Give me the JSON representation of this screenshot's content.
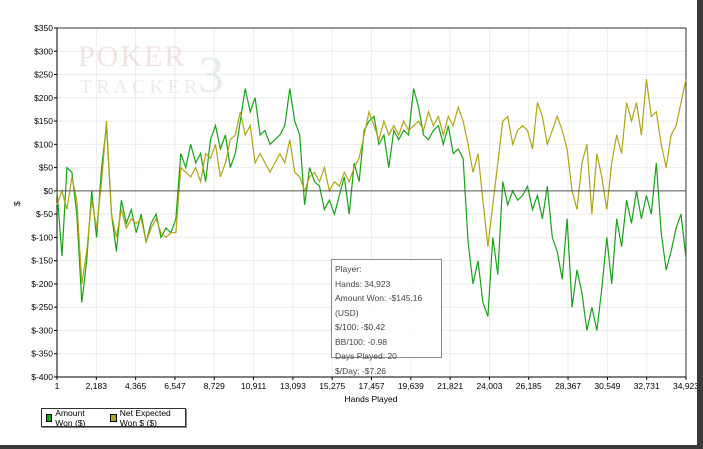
{
  "chart_data": {
    "type": "line",
    "xlabel": "Hands Played",
    "ylabel": "$",
    "xlim": [
      1,
      34923
    ],
    "ylim": [
      -400,
      350
    ],
    "grid": true,
    "x_ticks": [
      "1",
      "2,183",
      "4,365",
      "6,547",
      "8,729",
      "10,911",
      "13,093",
      "15,275",
      "17,457",
      "19,639",
      "21,821",
      "24,003",
      "26,185",
      "28,367",
      "30,549",
      "32,731",
      "34,923"
    ],
    "y_ticks": [
      350,
      300,
      250,
      200,
      150,
      100,
      50,
      0,
      -50,
      -100,
      -150,
      -200,
      -250,
      -300,
      -350,
      -400
    ],
    "y_tick_labels": [
      "$350",
      "$300",
      "$250",
      "$200",
      "$150",
      "$100",
      "$50",
      "$0",
      "$-50",
      "$-100",
      "$-150",
      "$-200",
      "$-250",
      "$-300",
      "$-350",
      "$-400"
    ],
    "legend_position": "bottom-left",
    "series": [
      {
        "name": "Amount Won ($)",
        "color": "#16a316",
        "values": [
          0,
          -140,
          50,
          40,
          -50,
          -240,
          -150,
          0,
          -100,
          50,
          140,
          -50,
          -130,
          -20,
          -70,
          -40,
          -90,
          -50,
          -110,
          -70,
          -50,
          -100,
          -80,
          -90,
          -60,
          80,
          50,
          100,
          60,
          80,
          20,
          110,
          140,
          90,
          120,
          50,
          80,
          150,
          220,
          170,
          200,
          120,
          130,
          100,
          110,
          120,
          140,
          220,
          150,
          120,
          -30,
          50,
          20,
          10,
          -40,
          -20,
          -50,
          -10,
          30,
          -50,
          60,
          20,
          130,
          150,
          160,
          100,
          120,
          50,
          130,
          110,
          130,
          120,
          220,
          180,
          120,
          110,
          130,
          140,
          100,
          140,
          80,
          90,
          70,
          -110,
          -200,
          -150,
          -240,
          -270,
          -100,
          -180,
          20,
          -30,
          0,
          -20,
          -10,
          10,
          -40,
          -10,
          -60,
          10,
          -100,
          -130,
          -190,
          -60,
          -250,
          -170,
          -220,
          -300,
          -250,
          -300,
          -210,
          -100,
          -200,
          -60,
          -120,
          -20,
          -70,
          0,
          -60,
          -10,
          -50,
          60,
          -90,
          -170,
          -130,
          -80,
          -50,
          -145
        ]
      },
      {
        "name": "Net Expected Won $ ($)",
        "color": "#b0a512",
        "values": [
          -30,
          0,
          -40,
          30,
          -20,
          -200,
          -130,
          -20,
          -80,
          20,
          150,
          -50,
          -100,
          -40,
          -80,
          -60,
          -70,
          -60,
          -110,
          -80,
          -60,
          -90,
          -100,
          -90,
          -90,
          50,
          40,
          30,
          50,
          20,
          80,
          70,
          100,
          30,
          60,
          110,
          120,
          170,
          120,
          140,
          60,
          80,
          60,
          40,
          60,
          80,
          60,
          110,
          40,
          30,
          0,
          30,
          40,
          20,
          50,
          0,
          20,
          10,
          40,
          20,
          50,
          70,
          120,
          170,
          140,
          110,
          150,
          120,
          140,
          120,
          150,
          130,
          140,
          150,
          130,
          170,
          140,
          160,
          120,
          160,
          140,
          180,
          150,
          100,
          40,
          80,
          -20,
          -120,
          -30,
          60,
          150,
          160,
          100,
          130,
          140,
          130,
          90,
          190,
          160,
          100,
          130,
          160,
          130,
          90,
          0,
          -40,
          60,
          100,
          -50,
          80,
          30,
          -40,
          60,
          120,
          80,
          190,
          150,
          190,
          120,
          240,
          160,
          170,
          100,
          50,
          120,
          140,
          190,
          240
        ]
      }
    ]
  },
  "tooltip": {
    "lines": [
      "Player:",
      "Hands: 34,923",
      "Amount Won: -$145.16 (USD)",
      "$/100: -$0.42",
      "BB/100: -0.98",
      "Days Played: 20",
      "$/Day: -$7.26"
    ]
  },
  "watermark": {
    "line1": "POKER",
    "line2": "TRACKER",
    "mark": "3"
  }
}
